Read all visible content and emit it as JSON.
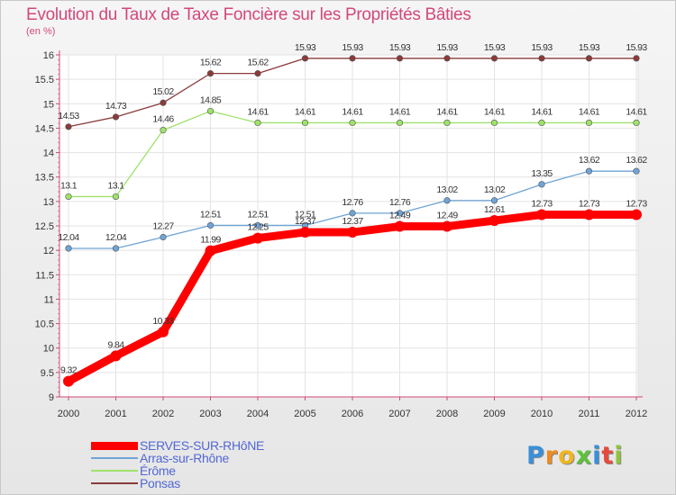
{
  "chart_data": {
    "type": "line",
    "title": "Evolution du Taux de Taxe Foncière sur les Propriétés Bâties",
    "ylabel": "(en %)",
    "xlabel": "",
    "ylim": [
      9,
      16
    ],
    "yticks": [
      "9",
      "9.5",
      "10",
      "10.5",
      "11",
      "11.5",
      "12",
      "12.5",
      "13",
      "13.5",
      "14",
      "14.5",
      "15",
      "15.5",
      "16"
    ],
    "categories": [
      "2000",
      "2001",
      "2002",
      "2003",
      "2004",
      "2005",
      "2006",
      "2007",
      "2008",
      "2009",
      "2010",
      "2011",
      "2012"
    ],
    "series": [
      {
        "name": "SERVES-SUR-RHôNE",
        "color": "#ff0000",
        "values": [
          9.32,
          9.84,
          10.33,
          11.99,
          12.25,
          12.37,
          12.37,
          12.49,
          12.49,
          12.61,
          12.73,
          12.73,
          12.73
        ],
        "labels": [
          "9.32",
          "9.84",
          "10.33",
          "11.99",
          "12.25",
          "12.37",
          "12.37",
          "12.49",
          "12.49",
          "12.61",
          "12.73",
          "12.73",
          "12.73"
        ]
      },
      {
        "name": "Arras-sur-Rhône",
        "color": "#6fa4d6",
        "values": [
          12.04,
          12.04,
          12.27,
          12.51,
          12.51,
          12.51,
          12.76,
          12.76,
          13.02,
          13.02,
          13.35,
          13.62,
          13.62
        ],
        "labels": [
          "12.04",
          "12.04",
          "12.27",
          "12.51",
          "12.51",
          "12.51",
          "12.76",
          "12.76",
          "13.02",
          "13.02",
          "13.35",
          "13.62",
          "13.62"
        ]
      },
      {
        "name": "Érôme",
        "color": "#9ee26a",
        "values": [
          13.1,
          13.1,
          14.46,
          14.85,
          14.61,
          14.61,
          14.61,
          14.61,
          14.61,
          14.61,
          14.61,
          14.61,
          14.61
        ],
        "labels": [
          "13.1",
          "13.1",
          "14.46",
          "14.85",
          "14.61",
          "14.61",
          "14.61",
          "14.61",
          "14.61",
          "14.61",
          "14.61",
          "14.61",
          "14.61"
        ]
      },
      {
        "name": "Ponsas",
        "color": "#8a3a3a",
        "values": [
          14.53,
          14.73,
          15.02,
          15.62,
          15.62,
          15.93,
          15.93,
          15.93,
          15.93,
          15.93,
          15.93,
          15.93,
          15.93
        ],
        "labels": [
          "14.53",
          "14.73",
          "15.02",
          "15.62",
          "15.62",
          "15.93",
          "15.93",
          "15.93",
          "15.93",
          "15.93",
          "15.93",
          "15.93",
          "15.93"
        ]
      }
    ],
    "legend": "bottom-left"
  },
  "logo": {
    "letters": [
      "P",
      "r",
      "o",
      "x",
      "i",
      "t",
      "i"
    ],
    "colors": [
      "#3a8fd8",
      "#f08a1e",
      "#f0b61e",
      "#5cc23c",
      "#3a8fd8",
      "#e64a3c",
      "#8fc43a"
    ]
  }
}
